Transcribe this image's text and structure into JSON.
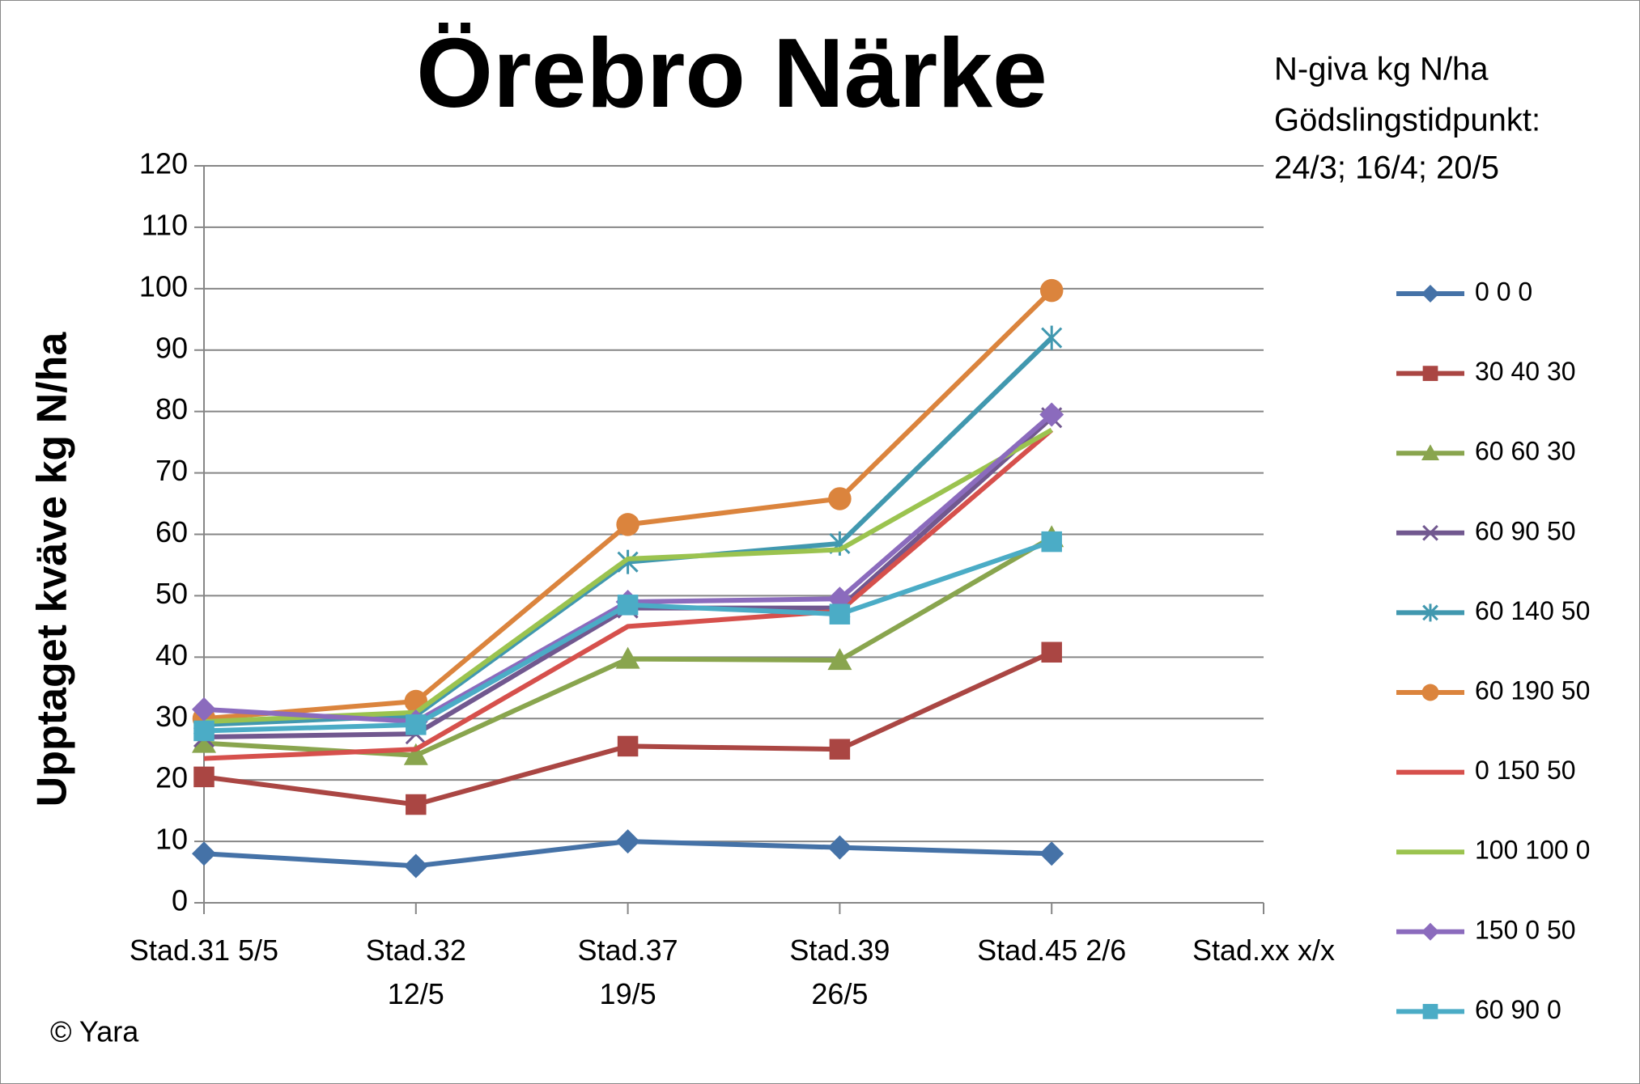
{
  "chart_data": {
    "type": "line",
    "title": "Örebro Närke",
    "annotations": [
      "N-giva kg N/ha",
      "Gödslingstidpunkt:",
      "24/3; 16/4; 20/5"
    ],
    "footer": "© Yara",
    "y_label": "Upptaget kväve kg N/ha",
    "categories": [
      "Stad.31 5/5",
      "Stad.32\n12/5",
      "Stad.37\n19/5",
      "Stad.39\n26/5",
      "Stad.45 2/6",
      "Stad.xx x/x"
    ],
    "ylim": [
      0,
      120
    ],
    "yticks": [
      0,
      10,
      20,
      30,
      40,
      50,
      60,
      70,
      80,
      90,
      100,
      110,
      120
    ],
    "grid": true,
    "legend": "right",
    "series": [
      {
        "name": "0 0 0",
        "color": "#4572a7",
        "marker": "diamond",
        "values": [
          8,
          6,
          10,
          9,
          8,
          null
        ]
      },
      {
        "name": "30 40 30",
        "color": "#aa4643",
        "marker": "square",
        "values": [
          20.5,
          16,
          25.5,
          25,
          40.8,
          null
        ]
      },
      {
        "name": "60 60 30",
        "color": "#89a54e",
        "marker": "triangle",
        "values": [
          26,
          24,
          39.7,
          39.5,
          59.5,
          null
        ]
      },
      {
        "name": "60 90 50",
        "color": "#71588f",
        "marker": "x",
        "values": [
          27,
          27.5,
          48,
          48,
          79,
          null
        ]
      },
      {
        "name": "60 140 50",
        "color": "#4198af",
        "marker": "star",
        "values": [
          29,
          30.5,
          55.5,
          58.5,
          92,
          null
        ]
      },
      {
        "name": "60 190 50",
        "color": "#db843d",
        "marker": "circle",
        "values": [
          30,
          32.8,
          61.6,
          65.8,
          99.7,
          null
        ]
      },
      {
        "name": "0 150 50",
        "color": "#d6504c",
        "marker": "none",
        "values": [
          23.5,
          25,
          45,
          47.5,
          77,
          null
        ]
      },
      {
        "name": "100 100 0",
        "color": "#9bc34f",
        "marker": "none",
        "values": [
          29.5,
          31,
          56,
          57.5,
          77,
          null
        ]
      },
      {
        "name": "150 0 50",
        "color": "#8b6bbd",
        "marker": "diamond",
        "values": [
          31.5,
          29.5,
          49,
          49.5,
          79.5,
          null
        ]
      },
      {
        "name": "60 90 0",
        "color": "#4bacc6",
        "marker": "square",
        "values": [
          28,
          29,
          48.5,
          47,
          58.8,
          null
        ]
      }
    ]
  }
}
